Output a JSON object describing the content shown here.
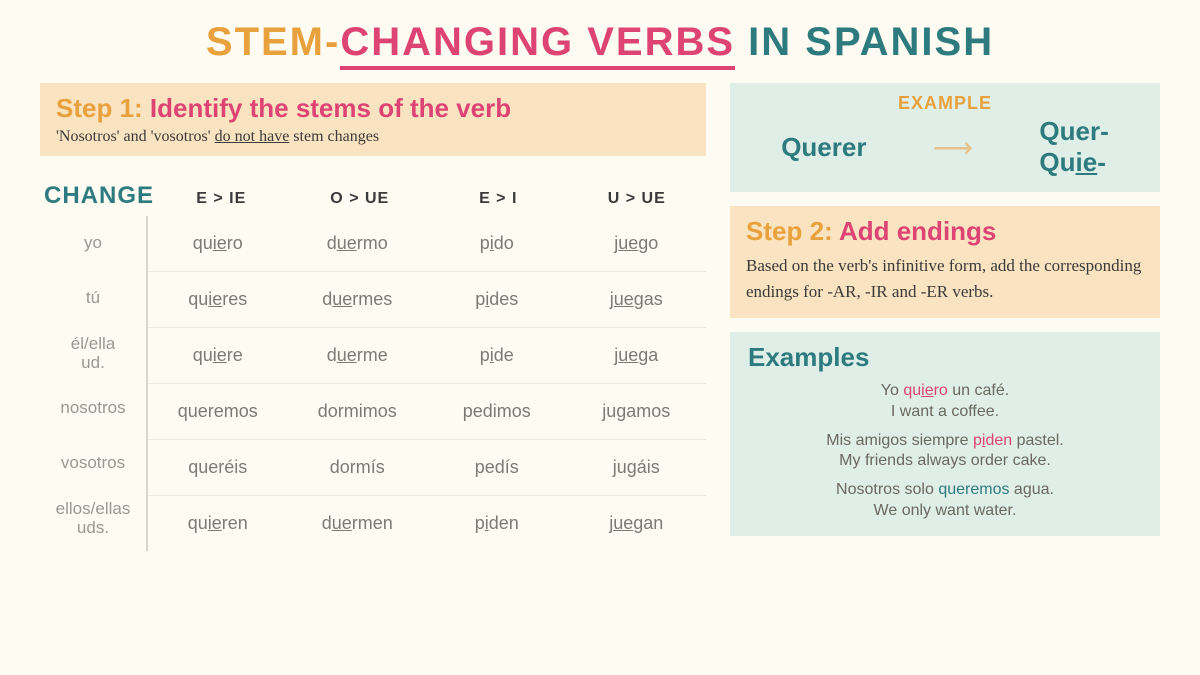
{
  "colors": {
    "orange": "#e8a13c",
    "pink": "#dd4474",
    "teal": "#2d7b7f",
    "bg": "#fdfbf2",
    "peach": "#fae3c0",
    "mint": "#e0eee8",
    "grey": "#7c7a72"
  },
  "title": {
    "p1": "STEM-",
    "p2": "CHANGING VERBS",
    "p3": " IN SPANISH"
  },
  "step1": {
    "label": "Step 1: ",
    "text": "Identify the stems of the verb",
    "sub_pre": "'Nosotros' and 'vosotros' ",
    "sub_ul": "do not have",
    "sub_post": " stem changes"
  },
  "table": {
    "change_label": "CHANGE",
    "columns": [
      "E > IE",
      "O > UE",
      "E > I",
      "U > UE"
    ],
    "pronouns": [
      "yo",
      "tú",
      "él/ella\nud.",
      "nosotros",
      "vosotros",
      "ellos/ellas\nuds."
    ],
    "rows": [
      [
        {
          "pre": "qu",
          "ul": "ie",
          "post": "ro"
        },
        {
          "pre": "d",
          "ul": "ue",
          "post": "rmo"
        },
        {
          "pre": "p",
          "ul": "i",
          "post": "do"
        },
        {
          "pre": "j",
          "ul": "ue",
          "post": "go"
        }
      ],
      [
        {
          "pre": "qu",
          "ul": "ie",
          "post": "res"
        },
        {
          "pre": "d",
          "ul": "ue",
          "post": "rmes"
        },
        {
          "pre": "p",
          "ul": "i",
          "post": "des"
        },
        {
          "pre": "j",
          "ul": "ue",
          "post": "gas"
        }
      ],
      [
        {
          "pre": "qu",
          "ul": "ie",
          "post": "re"
        },
        {
          "pre": "d",
          "ul": "ue",
          "post": "rme"
        },
        {
          "pre": "p",
          "ul": "i",
          "post": "de"
        },
        {
          "pre": "j",
          "ul": "ue",
          "post": "ga"
        }
      ],
      [
        {
          "plain": "queremos"
        },
        {
          "plain": "dormimos"
        },
        {
          "plain": "pedimos"
        },
        {
          "plain": "jugamos"
        }
      ],
      [
        {
          "plain": "queréis"
        },
        {
          "plain": "dormís"
        },
        {
          "plain": "pedís"
        },
        {
          "plain": "jugáis"
        }
      ],
      [
        {
          "pre": "qu",
          "ul": "ie",
          "post": "ren"
        },
        {
          "pre": "d",
          "ul": "ue",
          "post": "rmen"
        },
        {
          "pre": "p",
          "ul": "i",
          "post": "den"
        },
        {
          "pre": "j",
          "ul": "ue",
          "post": "gan"
        }
      ]
    ]
  },
  "example": {
    "label": "EXAMPLE",
    "left": "Querer",
    "r1": "Quer-",
    "r2_pre": "Qu",
    "r2_ul": "ie",
    "r2_post": "-"
  },
  "step2": {
    "label": "Step 2: ",
    "text": "Add endings",
    "body": "Based on the verb's infinitive form, add the corresponding endings for -AR, -IR and -ER verbs."
  },
  "examples": {
    "title": "Examples",
    "items": [
      {
        "es_pre": "Yo ",
        "hl_pre": "qu",
        "hl_ul": "ie",
        "hl_post": "ro",
        "es_post": " un café.",
        "en": "I want a coffee.",
        "hl_class": "hl-pink"
      },
      {
        "es_pre": "Mis amigos siempre ",
        "hl_pre": "p",
        "hl_ul": "i",
        "hl_post": "den",
        "es_post": " pastel.",
        "en": "My friends always order cake.",
        "hl_class": "hl-pink"
      },
      {
        "es_pre": "Nosotros solo ",
        "hl_pre": "",
        "hl_ul": "",
        "hl_post": "queremos",
        "es_post": " agua.",
        "en": "We only want water.",
        "hl_class": "hl-teal"
      }
    ]
  }
}
